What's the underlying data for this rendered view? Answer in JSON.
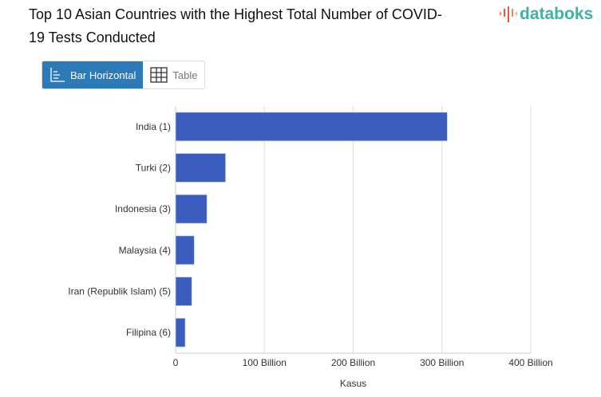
{
  "title": "Top 10 Asian Countries with the Highest Total Number of COVID-19 Tests Conducted",
  "logo": "databoks",
  "toggle": {
    "bar_label": "Bar Horizontal",
    "table_label": "Table",
    "active": "Bar Horizontal"
  },
  "colors": {
    "bar": "#3a5dbf",
    "accent": "#2c7ab8",
    "logo": "#3bb3a9"
  },
  "chart_data": {
    "type": "bar",
    "orientation": "horizontal",
    "categories": [
      "India (1)",
      "Turki (2)",
      "Indonesia (3)",
      "Malaysia (4)",
      "Iran (Republik Islam) (5)",
      "Filipina (6)"
    ],
    "values": [
      306000000000,
      56300000000,
      35300000000,
      21000000000,
      18300000000,
      10800000000
    ],
    "xlabel": "Kasus",
    "ylabel": "",
    "xlim": [
      0,
      400000000000
    ],
    "xticks": [
      0,
      100000000000,
      200000000000,
      300000000000,
      400000000000
    ],
    "xtick_labels": [
      "0",
      "100 Billion",
      "200 Billion",
      "300 Billion",
      "400 Billion"
    ],
    "grid": true
  }
}
